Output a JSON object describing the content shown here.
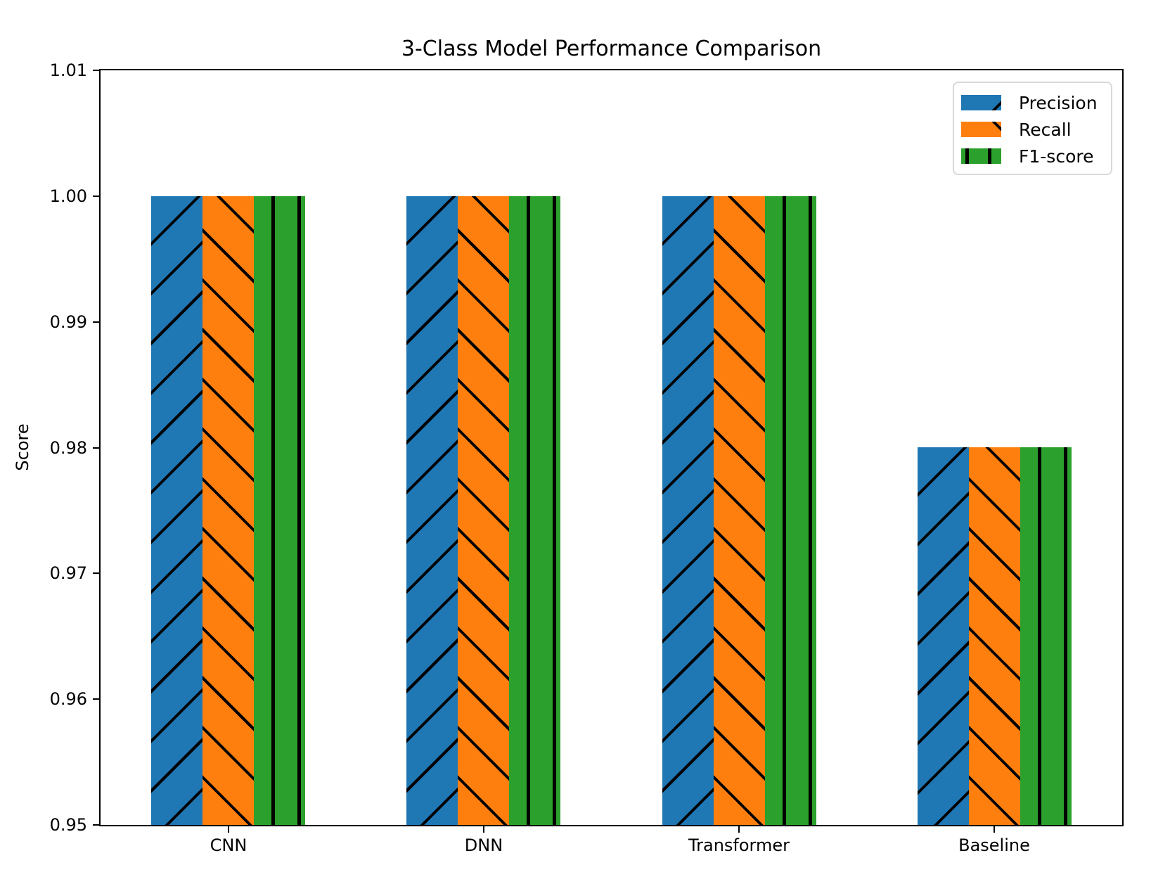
{
  "chart_data": {
    "type": "bar",
    "title": "3-Class Model Performance Comparison",
    "xlabel": "",
    "ylabel": "Score",
    "categories": [
      "CNN",
      "DNN",
      "Transformer",
      "Baseline"
    ],
    "series": [
      {
        "name": "Precision",
        "color": "#1f77b4",
        "hatch": "/",
        "values": [
          1.0,
          1.0,
          1.0,
          0.98
        ]
      },
      {
        "name": "Recall",
        "color": "#ff7f0e",
        "hatch": "\\",
        "values": [
          1.0,
          1.0,
          1.0,
          0.98
        ]
      },
      {
        "name": "F1-score",
        "color": "#2ca02c",
        "hatch": "|",
        "values": [
          1.0,
          1.0,
          1.0,
          0.98
        ]
      }
    ],
    "ylim": [
      0.95,
      1.01
    ],
    "yticks": [
      "0.95",
      "0.96",
      "0.97",
      "0.98",
      "0.99",
      "1.00",
      "1.01"
    ],
    "grid": false,
    "legend_position": "upper right",
    "bar_width_fraction": 0.2,
    "hatch_color": "#000000",
    "background_color": "#ffffff"
  }
}
